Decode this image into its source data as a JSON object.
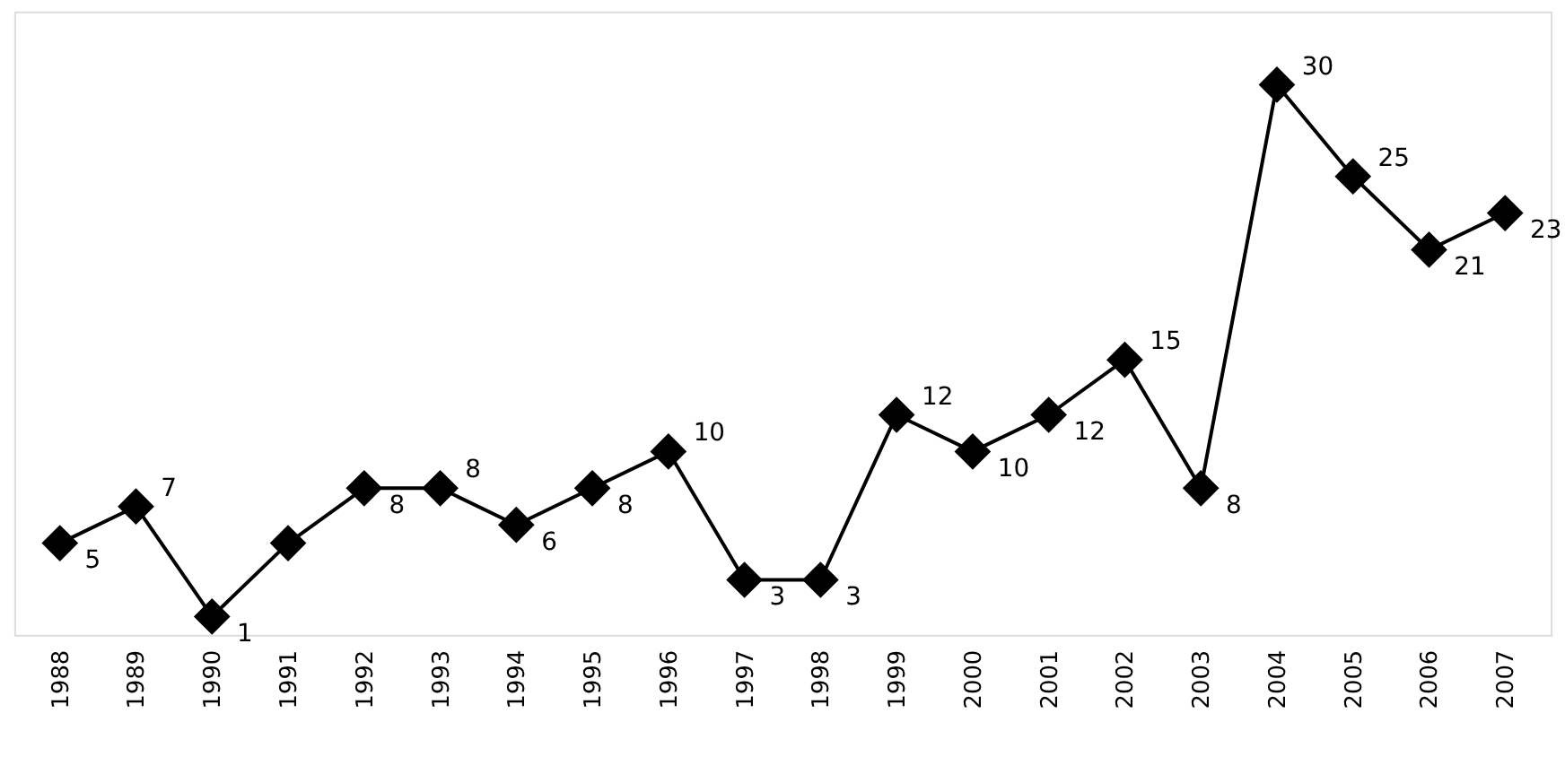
{
  "chart_data": {
    "type": "line",
    "categories": [
      "1988",
      "1989",
      "1990",
      "1991",
      "1992",
      "1993",
      "1994",
      "1995",
      "1996",
      "1997",
      "1998",
      "1999",
      "2000",
      "2001",
      "2002",
      "2003",
      "2004",
      "2005",
      "2006",
      "2007"
    ],
    "values": [
      5,
      7,
      1,
      5,
      8,
      8,
      6,
      8,
      10,
      3,
      3,
      12,
      10,
      12,
      15,
      8,
      30,
      25,
      21,
      23
    ],
    "value_labels": [
      "5",
      "7",
      "1",
      null,
      "8",
      "8",
      "6",
      "8",
      "10",
      "3",
      "3",
      "12",
      "10",
      "12",
      "15",
      "8",
      "30",
      "25",
      "21",
      "23"
    ],
    "color": "#000000",
    "marker": "diamond",
    "line_style": "solid",
    "ylim": [
      0,
      34
    ],
    "tick_labels": "x"
  }
}
